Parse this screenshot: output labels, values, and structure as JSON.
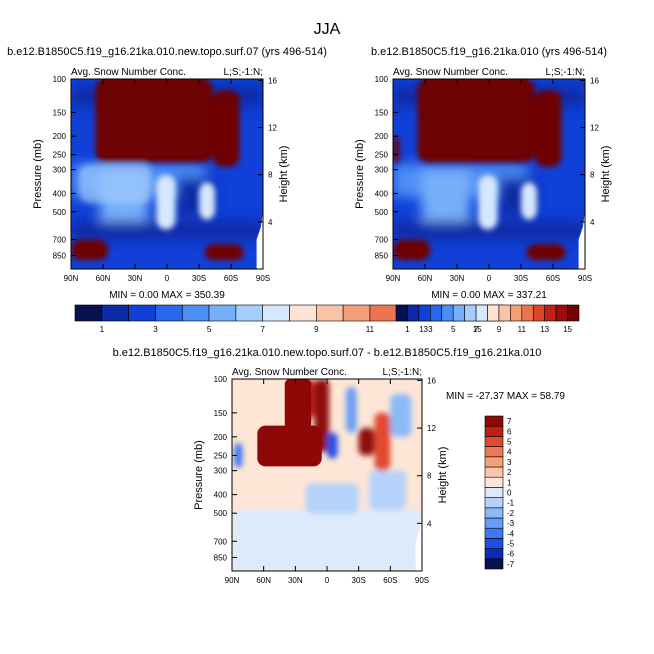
{
  "page": {
    "title": "JJA"
  },
  "colors": {
    "cb_full": [
      "#08104f",
      "#0a2aa6",
      "#1040d8",
      "#2a66ee",
      "#4d8ef6",
      "#77b0fa",
      "#a6cefc",
      "#d6e8fd",
      "#fce3d4",
      "#f9c3a6",
      "#f59f79",
      "#ee7350",
      "#e0452c",
      "#c41f17",
      "#9c0c0b",
      "#6e0303"
    ],
    "cb_diff": [
      "#08104f",
      "#0d2cb4",
      "#1d4fe3",
      "#3c78f0",
      "#679df5",
      "#8cb9f7",
      "#b4d2fa",
      "#dceafc",
      "#fde6d6",
      "#f8c6a8",
      "#f4a27c",
      "#ed7853",
      "#e04a2e",
      "#c11e16",
      "#8e0808"
    ],
    "mask": "#ffffff",
    "frame": "#000000"
  },
  "chart_data": [
    {
      "type": "heatmap",
      "panel": "control",
      "title": "b.e12.B1850C5.f19_g16.21ka.010.new.topo.surf.07 (yrs 496-514)",
      "subtitle_left": "Avg. Snow Number Conc.",
      "subtitle_right": "L;S;-1:N;",
      "xlabel": "",
      "ylabel": "Pressure (mb)",
      "ylabel_right": "Height (km)",
      "x_ticks": [
        "90N",
        "60N",
        "30N",
        "0",
        "30S",
        "60S",
        "90S"
      ],
      "x_tick_values": [
        90,
        60,
        30,
        0,
        -30,
        -60,
        -90
      ],
      "xlim": [
        90,
        -90
      ],
      "y_ticks": [
        "100",
        "150",
        "200",
        "250",
        "300",
        "400",
        "500",
        "700",
        "850"
      ],
      "y_tick_values": [
        100,
        150,
        200,
        250,
        300,
        400,
        500,
        700,
        850
      ],
      "ylim": [
        1000,
        100
      ],
      "y_scale": "log",
      "height_ticks": [
        "16",
        "12",
        "8",
        "4"
      ],
      "height_tick_values": [
        16,
        12,
        8,
        4
      ],
      "stats": "MIN =   0.00  MAX = 350.39",
      "min": 0.0,
      "max": 350.39,
      "colorbar_labels": [
        "1",
        "3",
        "5",
        "7",
        "9",
        "11",
        "13",
        "15"
      ],
      "levels": [
        1,
        2,
        3,
        4,
        5,
        6,
        7,
        8,
        9,
        10,
        11,
        12,
        13,
        14,
        15
      ],
      "features": [
        {
          "kind": "high",
          "lat_range": [
            67,
            -43
          ],
          "p_range": [
            100,
            275
          ]
        },
        {
          "kind": "high",
          "lat_range": [
            -43,
            -68
          ],
          "p_range": [
            115,
            290
          ]
        },
        {
          "kind": "low",
          "lat_range": [
            10,
            -8
          ],
          "p_range": [
            320,
            620
          ]
        },
        {
          "kind": "low",
          "lat_range": [
            -30,
            -45
          ],
          "p_range": [
            350,
            550
          ]
        },
        {
          "kind": "high",
          "lat_range": [
            90,
            55
          ],
          "p_range": [
            700,
            900
          ]
        },
        {
          "kind": "high",
          "lat_range": [
            -35,
            -72
          ],
          "p_range": [
            740,
            900
          ]
        },
        {
          "kind": "mid",
          "lat_range": [
            82,
            15
          ],
          "p_range": [
            280,
            450
          ]
        }
      ]
    },
    {
      "type": "heatmap",
      "panel": "experiment",
      "title": "b.e12.B1850C5.f19_g16.21ka.010 (yrs 496-514)",
      "subtitle_left": "Avg. Snow Number Conc.",
      "subtitle_right": "L;S;-1:N;",
      "xlabel": "",
      "ylabel": "Pressure (mb)",
      "ylabel_right": "Height (km)",
      "x_ticks": [
        "90N",
        "60N",
        "30N",
        "0",
        "30S",
        "60S",
        "90S"
      ],
      "x_tick_values": [
        90,
        60,
        30,
        0,
        -30,
        -60,
        -90
      ],
      "xlim": [
        90,
        -90
      ],
      "y_ticks": [
        "100",
        "150",
        "200",
        "250",
        "300",
        "400",
        "500",
        "700",
        "850"
      ],
      "y_tick_values": [
        100,
        150,
        200,
        250,
        300,
        400,
        500,
        700,
        850
      ],
      "ylim": [
        1000,
        100
      ],
      "y_scale": "log",
      "height_ticks": [
        "16",
        "12",
        "8",
        "4"
      ],
      "height_tick_values": [
        16,
        12,
        8,
        4
      ],
      "stats": "MIN =   0.00  MAX = 337.21",
      "min": 0.0,
      "max": 337.21,
      "colorbar_labels": [
        "1",
        "3",
        "5",
        "7",
        "9",
        "11",
        "13",
        "15"
      ],
      "levels": [
        1,
        2,
        3,
        4,
        5,
        6,
        7,
        8,
        9,
        10,
        11,
        12,
        13,
        14,
        15
      ],
      "features": [
        {
          "kind": "high",
          "lat_range": [
            67,
            -43
          ],
          "p_range": [
            100,
            275
          ]
        },
        {
          "kind": "high",
          "lat_range": [
            -43,
            -68
          ],
          "p_range": [
            115,
            290
          ]
        },
        {
          "kind": "low",
          "lat_range": [
            10,
            -8
          ],
          "p_range": [
            320,
            620
          ]
        },
        {
          "kind": "low",
          "lat_range": [
            -30,
            -45
          ],
          "p_range": [
            350,
            550
          ]
        },
        {
          "kind": "high",
          "lat_range": [
            90,
            55
          ],
          "p_range": [
            700,
            900
          ]
        },
        {
          "kind": "high",
          "lat_range": [
            -35,
            -72
          ],
          "p_range": [
            740,
            900
          ]
        },
        {
          "kind": "high",
          "lat_range": [
            90,
            84
          ],
          "p_range": [
            200,
            280
          ]
        }
      ]
    },
    {
      "type": "heatmap",
      "panel": "difference",
      "title": "b.e12.B1850C5.f19_g16.21ka.010.new.topo.surf.07 - b.e12.B1850C5.f19_g16.21ka.010",
      "subtitle_left": "Avg. Snow Number Conc.",
      "subtitle_right": "L;S;-1:N;",
      "xlabel": "",
      "ylabel": "Pressure (mb)",
      "ylabel_right": "Height (km)",
      "x_ticks": [
        "90N",
        "60N",
        "30N",
        "0",
        "30S",
        "60S",
        "90S"
      ],
      "x_tick_values": [
        90,
        60,
        30,
        0,
        -30,
        -60,
        -90
      ],
      "xlim": [
        90,
        -90
      ],
      "y_ticks": [
        "100",
        "150",
        "200",
        "250",
        "300",
        "400",
        "500",
        "700",
        "850"
      ],
      "y_tick_values": [
        100,
        150,
        200,
        250,
        300,
        400,
        500,
        700,
        850
      ],
      "ylim": [
        1000,
        100
      ],
      "y_scale": "log",
      "height_ticks": [
        "16",
        "12",
        "8",
        "4"
      ],
      "height_tick_values": [
        16,
        12,
        8,
        4
      ],
      "stats": "MIN = -27.37  MAX =  58.79",
      "min": -27.37,
      "max": 58.79,
      "colorbar_labels": [
        "7",
        "6",
        "5",
        "4",
        "3",
        "2",
        "1",
        "0",
        "-1",
        "-2",
        "-3",
        "-4",
        "-5",
        "-6",
        "-7"
      ],
      "levels": [
        -7,
        -6,
        -5,
        -4,
        -3,
        -2,
        -1,
        0,
        1,
        2,
        3,
        4,
        5,
        6,
        7
      ]
    }
  ]
}
